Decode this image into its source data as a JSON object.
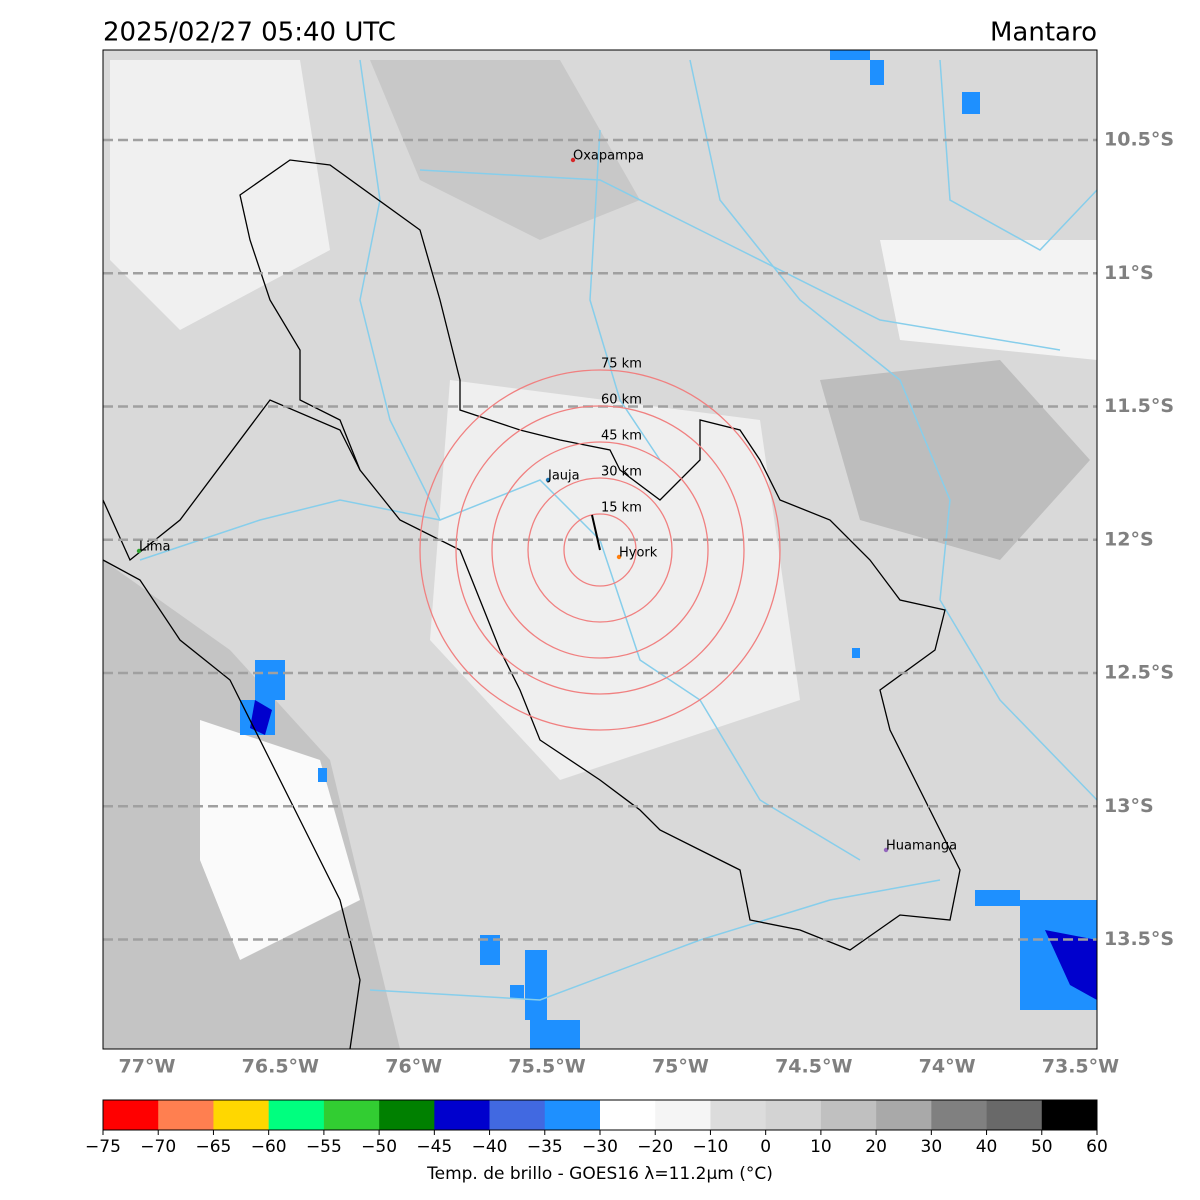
{
  "header": {
    "title": "2025/02/27 05:40 UTC",
    "region": "Mantaro"
  },
  "lat_lines": [
    {
      "value": -10.5,
      "label": "10.5°S"
    },
    {
      "value": -11,
      "label": "11°S"
    },
    {
      "value": -11.5,
      "label": "11.5°S"
    },
    {
      "value": -12,
      "label": "12°S"
    },
    {
      "value": -12.5,
      "label": "12.5°S"
    },
    {
      "value": -13,
      "label": "13°S"
    },
    {
      "value": -13.5,
      "label": "13.5°S"
    }
  ],
  "lon_labels": [
    {
      "value": -77,
      "label": "77°W"
    },
    {
      "value": -76.5,
      "label": "76.5°W"
    },
    {
      "value": -76,
      "label": "76°W"
    },
    {
      "value": -75.5,
      "label": "75.5°W"
    },
    {
      "value": -75,
      "label": "75°W"
    },
    {
      "value": -74.5,
      "label": "74.5°W"
    },
    {
      "value": -74,
      "label": "74°W"
    },
    {
      "value": -73.5,
      "label": "73.5°W"
    }
  ],
  "places": [
    "Oxapampa",
    "Jauja",
    "Lima",
    "Hyork",
    "Huamanga"
  ],
  "rings": [
    {
      "value": 15,
      "label": "15 km"
    },
    {
      "value": 30,
      "label": "30 km"
    },
    {
      "value": 45,
      "label": "45 km"
    },
    {
      "value": 60,
      "label": "60 km"
    },
    {
      "value": 75,
      "label": "75 km"
    }
  ],
  "colorbar": {
    "label": "Temp. de brillo - GOES16 λ=11.2μm (°C)",
    "ticks": [
      {
        "value": -75,
        "label": "−75"
      },
      {
        "value": -70,
        "label": "−70"
      },
      {
        "value": -65,
        "label": "−65"
      },
      {
        "value": -60,
        "label": "−60"
      },
      {
        "value": -55,
        "label": "−55"
      },
      {
        "value": -50,
        "label": "−50"
      },
      {
        "value": -45,
        "label": "−45"
      },
      {
        "value": -40,
        "label": "−40"
      },
      {
        "value": -35,
        "label": "−35"
      },
      {
        "value": -30,
        "label": "−30"
      },
      {
        "value": -20,
        "label": "−20"
      },
      {
        "value": -10,
        "label": "−10"
      },
      0,
      10,
      20,
      30,
      40,
      50,
      60
    ],
    "colors": [
      "#ff0000",
      "#ff7f50",
      "#ffd700",
      "#00ff7f",
      "#32cd32",
      "#008000",
      "#0000cd",
      "#4169e1",
      "#1e90ff",
      "#ffffff",
      "#f5f5f5",
      "#dcdcdc",
      "#d3d3d3",
      "#c0c0c0",
      "#a9a9a9",
      "#808080",
      "#696969",
      "#000000"
    ]
  }
}
